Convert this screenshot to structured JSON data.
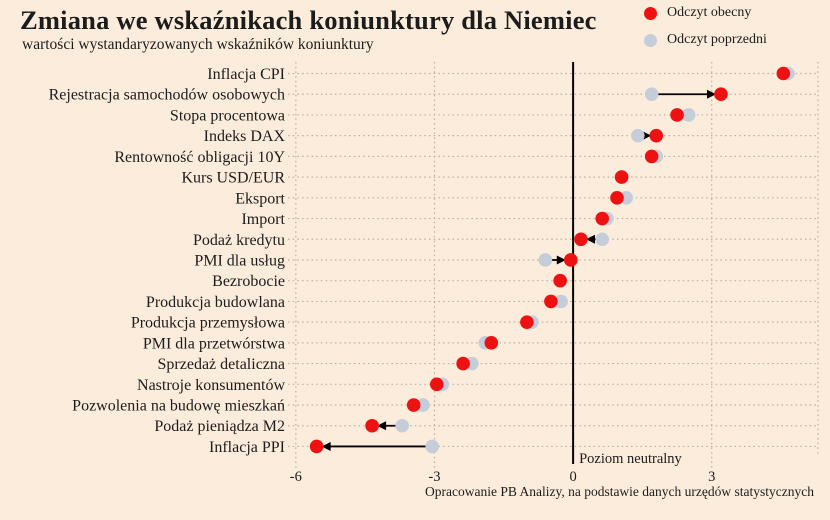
{
  "header": {
    "title": "Zmiana we wskaźnikach koniunktury dla Niemiec",
    "subtitle": "wartości wystandaryzowanych wskaźników koniunktury"
  },
  "legend": {
    "position": "top-right",
    "current_label": "Odczyt obecny",
    "previous_label": "Odczyt poprzedni"
  },
  "footer": {
    "source": "Opracowanie PB Analizy, na podstawie danych urzędów statystycznych"
  },
  "colors": {
    "background": "#fcecdc",
    "current": "#ee1111",
    "previous": "#c5cdda",
    "grid": "#bfae9f",
    "neutral_line": "#000000",
    "text": "#1c1c1c"
  },
  "chart_data": {
    "type": "scatter",
    "variant": "dumbbell-dot-plot",
    "title": "Zmiana we wskaźnikach koniunktury dla Niemiec",
    "subtitle": "wartości wystandaryzowanych wskaźników koniunktury",
    "xlabel": "",
    "ylabel": "",
    "xlim": [
      -6.17,
      5.3
    ],
    "xticks": [
      -6,
      -3,
      0,
      3
    ],
    "grid": "dotted",
    "legend_position": "top-right",
    "neutral_line": {
      "x": 0,
      "label": "Poziom neutralny"
    },
    "series_names": [
      "Odczyt obecny",
      "Odczyt poprzedni"
    ],
    "rows": [
      {
        "label": "Inflacja CPI",
        "current": 4.55,
        "previous": 4.65,
        "arrow": false
      },
      {
        "label": "Rejestracja samochodów osobowych",
        "current": 3.2,
        "previous": 1.7,
        "arrow": true
      },
      {
        "label": "Stopa procentowa",
        "current": 2.25,
        "previous": 2.5,
        "arrow": false
      },
      {
        "label": "Indeks DAX",
        "current": 1.8,
        "previous": 1.4,
        "arrow": true
      },
      {
        "label": "Rentowność obligacji 10Y",
        "current": 1.7,
        "previous": 1.8,
        "arrow": false
      },
      {
        "label": "Kurs USD/EUR",
        "current": 1.05,
        "previous": 1.05,
        "arrow": false
      },
      {
        "label": "Eksport",
        "current": 0.95,
        "previous": 1.15,
        "arrow": false
      },
      {
        "label": "Import",
        "current": 0.63,
        "previous": 0.73,
        "arrow": false
      },
      {
        "label": "Podaż kredytu",
        "current": 0.17,
        "previous": 0.63,
        "arrow": true
      },
      {
        "label": "PMI dla usług",
        "current": -0.05,
        "previous": -0.6,
        "arrow": true
      },
      {
        "label": "Bezrobocie",
        "current": -0.28,
        "previous": -0.28,
        "arrow": false
      },
      {
        "label": "Produkcja budowlana",
        "current": -0.48,
        "previous": -0.26,
        "arrow": false
      },
      {
        "label": "Produkcja przemysłowa",
        "current": -1.0,
        "previous": -0.89,
        "arrow": false
      },
      {
        "label": "PMI dla przetwórstwa",
        "current": -1.77,
        "previous": -1.9,
        "arrow": false
      },
      {
        "label": "Sprzedaż detaliczna",
        "current": -2.38,
        "previous": -2.19,
        "arrow": false
      },
      {
        "label": "Nastroje konsumentów",
        "current": -2.95,
        "previous": -2.83,
        "arrow": false
      },
      {
        "label": "Pozwolenia na budowę mieszkań",
        "current": -3.45,
        "previous": -3.25,
        "arrow": false
      },
      {
        "label": "Podaż pieniądza M2",
        "current": -4.35,
        "previous": -3.7,
        "arrow": true
      },
      {
        "label": "Inflacja PPI",
        "current": -5.55,
        "previous": -3.05,
        "arrow": true
      }
    ]
  }
}
